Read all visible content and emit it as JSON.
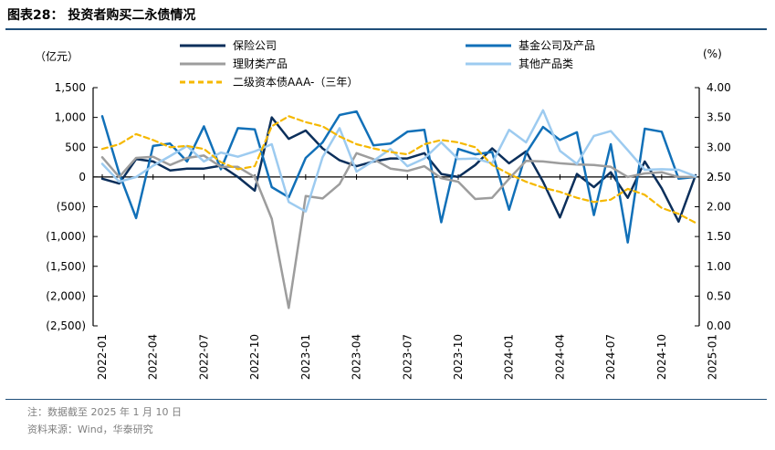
{
  "figure": {
    "title": "图表28：  投资者购买二永债情况",
    "note": "注：数据截至 2025 年 1 月 10 日",
    "source": "资料来源：Wind，华泰研究"
  },
  "chart_data": {
    "type": "line",
    "title": "投资者购买二永债情况",
    "y_left_unit": "（亿元）",
    "y_right_unit": "(%)",
    "y_left_range": [
      -2500,
      1500
    ],
    "y_right_range": [
      0,
      4
    ],
    "y_left_ticks": [
      "1,500",
      "1,000",
      "500",
      "0",
      "(500)",
      "(1,000)",
      "(1,500)",
      "(2,000)",
      "(2,500)"
    ],
    "y_right_ticks": [
      "4.00",
      "3.50",
      "3.00",
      "2.50",
      "2.00",
      "1.50",
      "1.00",
      "0.50",
      "0.00"
    ],
    "x_tick_labels": [
      "2022-01",
      "2022-04",
      "2022-07",
      "2022-10",
      "2023-01",
      "2023-04",
      "2023-07",
      "2023-10",
      "2024-01",
      "2024-04",
      "2024-07",
      "2024-10",
      "2025-01"
    ],
    "series": [
      {
        "name": "保险公司",
        "axis": "left",
        "color": "#0b2f5b",
        "width": 2.5,
        "dash": false,
        "values": [
          -30,
          -110,
          300,
          260,
          110,
          140,
          140,
          190,
          0,
          -230,
          1000,
          640,
          780,
          480,
          280,
          180,
          260,
          310,
          310,
          400,
          50,
          0,
          200,
          480,
          230,
          430,
          -80,
          -680,
          50,
          -170,
          80,
          -350,
          260,
          -190,
          -750,
          30
        ]
      },
      {
        "name": "基金公司及产品",
        "axis": "left",
        "color": "#1170b8",
        "width": 2.5,
        "dash": false,
        "values": [
          1020,
          60,
          -690,
          520,
          560,
          260,
          850,
          130,
          820,
          800,
          -170,
          -340,
          320,
          580,
          1040,
          1100,
          530,
          560,
          760,
          790,
          -760,
          470,
          380,
          420,
          -550,
          400,
          840,
          620,
          750,
          -640,
          550,
          -1100,
          810,
          760,
          -30,
          0
        ]
      },
      {
        "name": "理财类产品",
        "axis": "left",
        "color": "#9d9d9d",
        "width": 2.5,
        "dash": false,
        "values": [
          330,
          0,
          320,
          340,
          200,
          320,
          360,
          170,
          170,
          0,
          -700,
          -2200,
          -320,
          -360,
          -120,
          400,
          300,
          140,
          100,
          180,
          -20,
          -80,
          -370,
          -350,
          -30,
          270,
          260,
          230,
          210,
          200,
          170,
          0,
          60,
          80,
          0,
          0
        ]
      },
      {
        "name": "其他产品类",
        "axis": "left",
        "color": "#9dcbf0",
        "width": 2.5,
        "dash": false,
        "values": [
          220,
          -80,
          0,
          190,
          350,
          520,
          260,
          410,
          340,
          430,
          550,
          -420,
          -580,
          330,
          820,
          90,
          270,
          470,
          180,
          310,
          580,
          300,
          310,
          230,
          790,
          580,
          1120,
          440,
          220,
          690,
          770,
          450,
          120,
          130,
          120,
          10
        ]
      },
      {
        "name": "二级资本债AAA-（三年）",
        "axis": "right",
        "color": "#f5b800",
        "width": 2.2,
        "dash": true,
        "values": [
          2.97,
          3.05,
          3.22,
          3.12,
          3.0,
          3.02,
          2.97,
          2.75,
          2.63,
          2.68,
          3.35,
          3.52,
          3.42,
          3.35,
          3.18,
          3.05,
          2.98,
          2.92,
          2.88,
          3.05,
          3.12,
          3.08,
          3.0,
          2.7,
          2.55,
          2.42,
          2.32,
          2.25,
          2.15,
          2.08,
          2.12,
          2.3,
          2.2,
          1.98,
          1.88,
          1.73
        ]
      }
    ],
    "legend": {
      "position": "top",
      "columns": 2
    }
  }
}
